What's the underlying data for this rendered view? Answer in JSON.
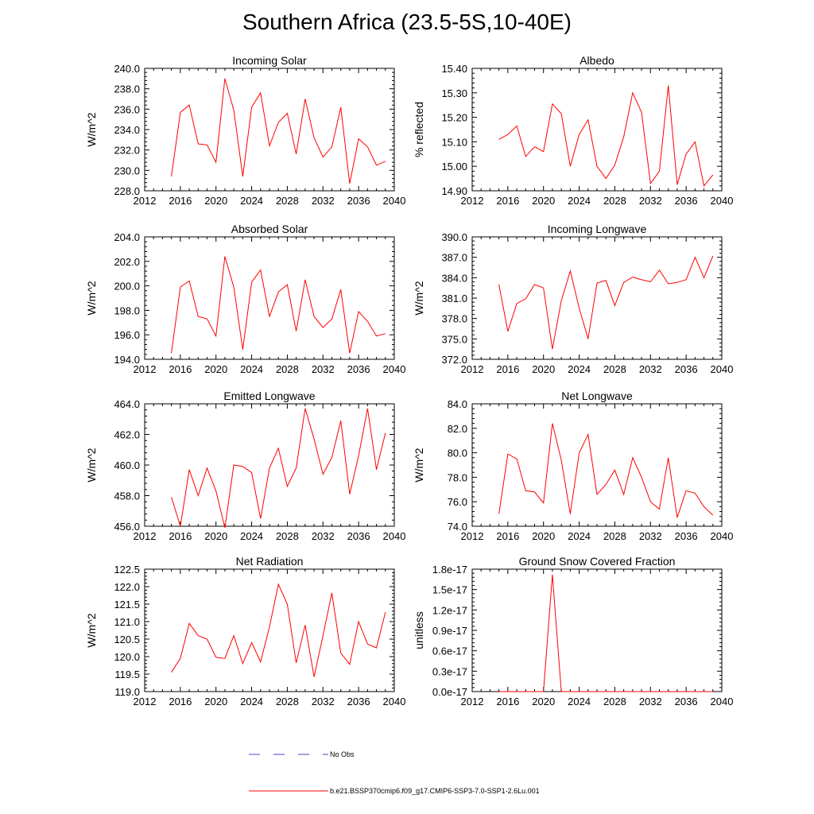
{
  "title": "Southern Africa (23.5-5S,10-40E)",
  "colors": {
    "model": "#ff0000",
    "obs": "#4444cc",
    "axis": "#000000"
  },
  "legend": {
    "obs_label": "No Obs",
    "model_label": "b.e21.BSSP370cmip6.f09_g17.CMIP6-SSP3-7.0-SSP1-2.6Lu.001"
  },
  "chart_data": [
    {
      "type": "line",
      "title": "Incoming Solar",
      "xlabel": "",
      "ylabel": "W/m^2",
      "xlim": [
        2012,
        2040
      ],
      "ylim": [
        228,
        240
      ],
      "xticks": [
        2012,
        2016,
        2020,
        2024,
        2028,
        2032,
        2036,
        2040
      ],
      "xtick_labels": [
        "2012",
        "2016",
        "2020",
        "2024",
        "2028",
        "2032",
        "2036",
        "2040"
      ],
      "yticks": [
        228,
        230,
        232,
        234,
        236,
        238,
        240
      ],
      "ytick_labels": [
        "228.0",
        "230.0",
        "232.0",
        "234.0",
        "236.0",
        "238.0",
        "240.0"
      ],
      "series": [
        {
          "x": [
            2015,
            2016,
            2017,
            2018,
            2019,
            2020,
            2021,
            2022,
            2023,
            2024,
            2025,
            2026,
            2027,
            2028,
            2029,
            2030,
            2031,
            2032,
            2033,
            2034,
            2035,
            2036,
            2037,
            2038,
            2039
          ],
          "y": [
            229.4,
            235.7,
            236.4,
            232.6,
            232.5,
            230.8,
            239.0,
            235.9,
            229.4,
            236.2,
            237.6,
            232.4,
            234.7,
            235.6,
            231.6,
            237.0,
            233.2,
            231.3,
            232.3,
            236.2,
            228.7,
            233.1,
            232.3,
            230.5,
            230.9
          ]
        }
      ]
    },
    {
      "type": "line",
      "title": "Albedo",
      "xlabel": "",
      "ylabel": "% reflected",
      "xlim": [
        2012,
        2040
      ],
      "ylim": [
        14.9,
        15.4
      ],
      "xticks": [
        2012,
        2016,
        2020,
        2024,
        2028,
        2032,
        2036,
        2040
      ],
      "xtick_labels": [
        "2012",
        "2016",
        "2020",
        "2024",
        "2028",
        "2032",
        "2036",
        "2040"
      ],
      "yticks": [
        14.9,
        15.0,
        15.1,
        15.2,
        15.3,
        15.4
      ],
      "ytick_labels": [
        "14.90",
        "15.00",
        "15.10",
        "15.20",
        "15.30",
        "15.40"
      ],
      "series": [
        {
          "x": [
            2015,
            2016,
            2017,
            2018,
            2019,
            2020,
            2021,
            2022,
            2023,
            2024,
            2025,
            2026,
            2027,
            2028,
            2029,
            2030,
            2031,
            2032,
            2033,
            2034,
            2035,
            2036,
            2037,
            2038,
            2039
          ],
          "y": [
            15.11,
            15.13,
            15.165,
            15.04,
            15.08,
            15.06,
            15.255,
            15.215,
            15.0,
            15.13,
            15.19,
            15.0,
            14.95,
            15.005,
            15.12,
            15.3,
            15.22,
            14.93,
            14.98,
            15.33,
            14.925,
            15.05,
            15.1,
            14.92,
            14.965
          ]
        }
      ]
    },
    {
      "type": "line",
      "title": "Absorbed Solar",
      "xlabel": "",
      "ylabel": "W/m^2",
      "xlim": [
        2012,
        2040
      ],
      "ylim": [
        194,
        204
      ],
      "xticks": [
        2012,
        2016,
        2020,
        2024,
        2028,
        2032,
        2036,
        2040
      ],
      "xtick_labels": [
        "2012",
        "2016",
        "2020",
        "2024",
        "2028",
        "2032",
        "2036",
        "2040"
      ],
      "yticks": [
        194,
        196,
        198,
        200,
        202,
        204
      ],
      "ytick_labels": [
        "194.0",
        "196.0",
        "198.0",
        "200.0",
        "202.0",
        "204.0"
      ],
      "series": [
        {
          "x": [
            2015,
            2016,
            2017,
            2018,
            2019,
            2020,
            2021,
            2022,
            2023,
            2024,
            2025,
            2026,
            2027,
            2028,
            2029,
            2030,
            2031,
            2032,
            2033,
            2034,
            2035,
            2036,
            2037,
            2038,
            2039
          ],
          "y": [
            194.5,
            199.9,
            200.4,
            197.5,
            197.3,
            195.9,
            202.4,
            199.9,
            194.8,
            200.3,
            201.3,
            197.5,
            199.5,
            200.1,
            196.3,
            200.5,
            197.5,
            196.6,
            197.3,
            199.7,
            194.5,
            197.9,
            197.1,
            195.9,
            196.1
          ]
        }
      ]
    },
    {
      "type": "line",
      "title": "Incoming Longwave",
      "xlabel": "",
      "ylabel": "W/m^2",
      "xlim": [
        2012,
        2040
      ],
      "ylim": [
        372,
        390
      ],
      "xticks": [
        2012,
        2016,
        2020,
        2024,
        2028,
        2032,
        2036,
        2040
      ],
      "xtick_labels": [
        "2012",
        "2016",
        "2020",
        "2024",
        "2028",
        "2032",
        "2036",
        "2040"
      ],
      "yticks": [
        372,
        375,
        378,
        381,
        384,
        387,
        390
      ],
      "ytick_labels": [
        "372.0",
        "375.0",
        "378.0",
        "381.0",
        "384.0",
        "387.0",
        "390.0"
      ],
      "series": [
        {
          "x": [
            2015,
            2016,
            2017,
            2018,
            2019,
            2020,
            2021,
            2022,
            2023,
            2024,
            2025,
            2026,
            2027,
            2028,
            2029,
            2030,
            2031,
            2032,
            2033,
            2034,
            2035,
            2036,
            2037,
            2038,
            2039
          ],
          "y": [
            383.0,
            376.1,
            380.2,
            380.9,
            383.0,
            382.5,
            373.5,
            380.6,
            385.0,
            379.5,
            375.0,
            383.2,
            383.6,
            379.9,
            383.3,
            384.1,
            383.7,
            383.4,
            385.1,
            383.1,
            383.3,
            383.7,
            387.0,
            384.0,
            387.2
          ]
        }
      ]
    },
    {
      "type": "line",
      "title": "Emitted Longwave",
      "xlabel": "",
      "ylabel": "W/m^2",
      "xlim": [
        2012,
        2040
      ],
      "ylim": [
        456,
        464
      ],
      "xticks": [
        2012,
        2016,
        2020,
        2024,
        2028,
        2032,
        2036,
        2040
      ],
      "xtick_labels": [
        "2012",
        "2016",
        "2020",
        "2024",
        "2028",
        "2032",
        "2036",
        "2040"
      ],
      "yticks": [
        456,
        458,
        460,
        462,
        464
      ],
      "ytick_labels": [
        "456.0",
        "458.0",
        "460.0",
        "462.0",
        "464.0"
      ],
      "series": [
        {
          "x": [
            2015,
            2016,
            2017,
            2018,
            2019,
            2020,
            2021,
            2022,
            2023,
            2024,
            2025,
            2026,
            2027,
            2028,
            2029,
            2030,
            2031,
            2032,
            2033,
            2034,
            2035,
            2036,
            2037,
            2038,
            2039
          ],
          "y": [
            457.9,
            456.0,
            459.7,
            458.0,
            459.8,
            458.3,
            455.9,
            460.0,
            459.9,
            459.5,
            456.5,
            459.8,
            461.1,
            458.6,
            459.8,
            463.7,
            461.7,
            459.4,
            460.5,
            462.9,
            458.1,
            460.6,
            463.7,
            459.7,
            462.1
          ]
        }
      ]
    },
    {
      "type": "line",
      "title": "Net Longwave",
      "xlabel": "",
      "ylabel": "W/m^2",
      "xlim": [
        2012,
        2040
      ],
      "ylim": [
        74,
        84
      ],
      "xticks": [
        2012,
        2016,
        2020,
        2024,
        2028,
        2032,
        2036,
        2040
      ],
      "xtick_labels": [
        "2012",
        "2016",
        "2020",
        "2024",
        "2028",
        "2032",
        "2036",
        "2040"
      ],
      "yticks": [
        74,
        76,
        78,
        80,
        82,
        84
      ],
      "ytick_labels": [
        "74.0",
        "76.0",
        "78.0",
        "80.0",
        "82.0",
        "84.0"
      ],
      "series": [
        {
          "x": [
            2015,
            2016,
            2017,
            2018,
            2019,
            2020,
            2021,
            2022,
            2023,
            2024,
            2025,
            2026,
            2027,
            2028,
            2029,
            2030,
            2031,
            2032,
            2033,
            2034,
            2035,
            2036,
            2037,
            2038,
            2039
          ],
          "y": [
            75.0,
            79.9,
            79.5,
            76.9,
            76.8,
            75.9,
            82.4,
            79.4,
            75.0,
            80.0,
            81.5,
            76.6,
            77.4,
            78.6,
            76.6,
            79.6,
            78.0,
            76.0,
            75.4,
            79.6,
            74.7,
            76.9,
            76.7,
            75.6,
            74.9
          ]
        }
      ]
    },
    {
      "type": "line",
      "title": "Net Radiation",
      "xlabel": "",
      "ylabel": "W/m^2",
      "xlim": [
        2012,
        2040
      ],
      "ylim": [
        119,
        122.5
      ],
      "xticks": [
        2012,
        2016,
        2020,
        2024,
        2028,
        2032,
        2036,
        2040
      ],
      "xtick_labels": [
        "2012",
        "2016",
        "2020",
        "2024",
        "2028",
        "2032",
        "2036",
        "2040"
      ],
      "yticks": [
        119,
        119.5,
        120,
        120.5,
        121,
        121.5,
        122,
        122.5
      ],
      "ytick_labels": [
        "119.0",
        "119.5",
        "120.0",
        "120.5",
        "121.0",
        "121.5",
        "122.0",
        "122.5"
      ],
      "series": [
        {
          "x": [
            2015,
            2016,
            2017,
            2018,
            2019,
            2020,
            2021,
            2022,
            2023,
            2024,
            2025,
            2026,
            2027,
            2028,
            2029,
            2030,
            2031,
            2032,
            2033,
            2034,
            2035,
            2036,
            2037,
            2038,
            2039
          ],
          "y": [
            119.55,
            119.95,
            120.95,
            120.6,
            120.5,
            119.98,
            119.95,
            120.6,
            119.8,
            120.4,
            119.85,
            120.85,
            122.07,
            121.5,
            119.82,
            120.9,
            119.42,
            120.6,
            121.82,
            120.1,
            119.78,
            121.0,
            120.36,
            120.25,
            121.27
          ]
        }
      ]
    },
    {
      "type": "line",
      "title": "Ground Snow Covered Fraction",
      "xlabel": "",
      "ylabel": "unitless",
      "xlim": [
        2012,
        2040
      ],
      "ylim": [
        0,
        1.8e-17
      ],
      "xticks": [
        2012,
        2016,
        2020,
        2024,
        2028,
        2032,
        2036,
        2040
      ],
      "xtick_labels": [
        "2012",
        "2016",
        "2020",
        "2024",
        "2028",
        "2032",
        "2036",
        "2040"
      ],
      "yticks": [
        0,
        3e-18,
        6e-18,
        9e-18,
        1.2e-17,
        1.5e-17,
        1.8e-17
      ],
      "ytick_labels": [
        "0.0e-17",
        "0.3e-17",
        "0.6e-17",
        "0.9e-17",
        "1.2e-17",
        "1.5e-17",
        "1.8e-17"
      ],
      "series": [
        {
          "x": [
            2015,
            2016,
            2017,
            2018,
            2019,
            2020,
            2021,
            2022,
            2023,
            2024,
            2025,
            2026,
            2027,
            2028,
            2029,
            2030,
            2031,
            2032,
            2033,
            2034,
            2035,
            2036,
            2037,
            2038,
            2039
          ],
          "y": [
            0,
            0,
            0,
            0,
            0,
            0,
            1.72e-17,
            0,
            0,
            0,
            0,
            0,
            0,
            0,
            0,
            0,
            0,
            0,
            0,
            0,
            0,
            0,
            0,
            0,
            0
          ]
        }
      ]
    }
  ]
}
